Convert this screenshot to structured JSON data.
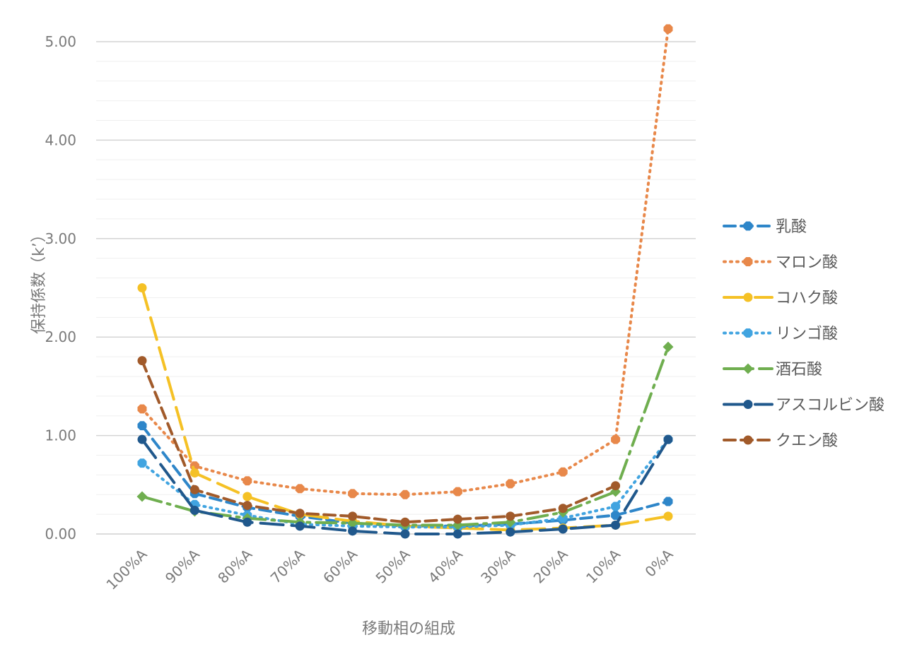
{
  "chart_data": {
    "type": "line",
    "title": "",
    "xlabel": "移動相の組成",
    "ylabel": "保持係数（k’）",
    "categories": [
      "100%A",
      "90%A",
      "80%A",
      "70%A",
      "60%A",
      "50%A",
      "40%A",
      "30%A",
      "20%A",
      "10%A",
      "0%A"
    ],
    "ylim": [
      0,
      5.0
    ],
    "yticks": [
      "0.00",
      "1.00",
      "2.00",
      "3.00",
      "4.00",
      "5.00"
    ],
    "grid": true,
    "legend_position": "right",
    "series": [
      {
        "name": "乳酸",
        "color": "#2e86c9",
        "dash": "dash",
        "marker": "hexagon",
        "values": [
          1.1,
          0.41,
          0.27,
          0.18,
          0.11,
          0.08,
          0.08,
          0.1,
          0.14,
          0.19,
          0.33
        ]
      },
      {
        "name": "マロン酸",
        "color": "#e8884a",
        "dash": "dot",
        "marker": "hexagon",
        "values": [
          1.27,
          0.69,
          0.54,
          0.46,
          0.41,
          0.4,
          0.43,
          0.51,
          0.63,
          0.96,
          5.13
        ]
      },
      {
        "name": "コハク酸",
        "color": "#f5c125",
        "dash": "longdash",
        "marker": "circle",
        "values": [
          2.5,
          0.62,
          0.38,
          0.2,
          0.13,
          0.08,
          0.06,
          0.04,
          0.06,
          0.09,
          0.18
        ]
      },
      {
        "name": "リンゴ酸",
        "color": "#41a4e0",
        "dash": "dot",
        "marker": "hexagon",
        "values": [
          0.72,
          0.3,
          0.19,
          0.1,
          0.08,
          0.07,
          0.07,
          0.09,
          0.16,
          0.28,
          0.96
        ]
      },
      {
        "name": "酒石酸",
        "color": "#6fae4f",
        "dash": "dashdot",
        "marker": "diamond",
        "values": [
          0.38,
          0.23,
          0.16,
          0.12,
          0.11,
          0.09,
          0.09,
          0.12,
          0.22,
          0.43,
          1.9
        ]
      },
      {
        "name": "アスコルビン酸",
        "color": "#20588c",
        "dash": "longdash",
        "marker": "circle",
        "values": [
          0.96,
          0.24,
          0.12,
          0.08,
          0.03,
          0.0,
          0.0,
          0.02,
          0.05,
          0.09,
          0.96
        ]
      },
      {
        "name": "クエン酸",
        "color": "#a15a2a",
        "dash": "dash",
        "marker": "circle",
        "values": [
          1.76,
          0.45,
          0.29,
          0.21,
          0.18,
          0.12,
          0.15,
          0.18,
          0.26,
          0.49,
          null
        ]
      }
    ]
  }
}
